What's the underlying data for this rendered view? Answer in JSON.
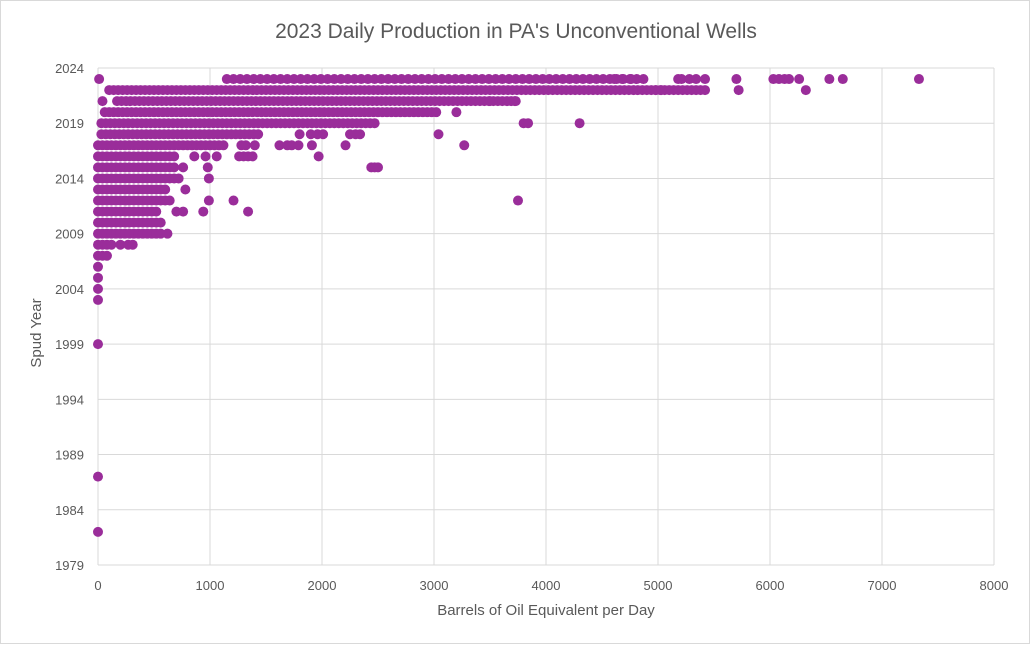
{
  "chart_data": {
    "type": "scatter",
    "title": "2023 Daily Production in PA's Unconventional Wells",
    "xlabel": "Barrels of Oil Equivalent per Day",
    "ylabel": "Spud Year",
    "xlim": [
      0,
      8000
    ],
    "ylim": [
      1979,
      2024
    ],
    "x_ticks": [
      "0",
      "1000",
      "2000",
      "3000",
      "4000",
      "5000",
      "6000",
      "7000",
      "8000"
    ],
    "y_ticks": [
      "1979",
      "1984",
      "1989",
      "1994",
      "1999",
      "2004",
      "2009",
      "2014",
      "2019",
      "2024"
    ],
    "grid": "horizontal and vertical",
    "legend": "none",
    "marker_color": "#9a2d9a",
    "series": [
      {
        "runs": [
          {
            "year": 2023,
            "from": 1150,
            "to": 4900,
            "step": 60
          },
          {
            "year": 2022,
            "from": 100,
            "to": 5450,
            "step": 40
          },
          {
            "year": 2021,
            "from": 170,
            "to": 3750,
            "step": 40
          },
          {
            "year": 2020,
            "from": 60,
            "to": 3050,
            "step": 40
          },
          {
            "year": 2019,
            "from": 30,
            "to": 2500,
            "step": 40
          },
          {
            "year": 2018,
            "from": 30,
            "to": 1450,
            "step": 40
          },
          {
            "year": 2017,
            "from": 0,
            "to": 1150,
            "step": 40
          },
          {
            "year": 2016,
            "from": 0,
            "to": 690,
            "step": 40
          },
          {
            "year": 2015,
            "from": 0,
            "to": 690,
            "step": 40
          },
          {
            "year": 2014,
            "from": 0,
            "to": 720,
            "step": 40
          },
          {
            "year": 2013,
            "from": 0,
            "to": 620,
            "step": 40
          },
          {
            "year": 2012,
            "from": 0,
            "to": 640,
            "step": 40
          },
          {
            "year": 2011,
            "from": 0,
            "to": 540,
            "step": 40
          },
          {
            "year": 2010,
            "from": 0,
            "to": 560,
            "step": 40
          },
          {
            "year": 2009,
            "from": 0,
            "to": 560,
            "step": 40
          },
          {
            "year": 2008,
            "from": 0,
            "to": 130,
            "step": 40
          },
          {
            "year": 2007,
            "from": 0,
            "to": 80,
            "step": 40
          }
        ],
        "points": [
          {
            "x": 10,
            "y": 2023
          },
          {
            "x": 5700,
            "y": 2023
          },
          {
            "x": 6030,
            "y": 2023
          },
          {
            "x": 6080,
            "y": 2023
          },
          {
            "x": 6130,
            "y": 2023
          },
          {
            "x": 6170,
            "y": 2023
          },
          {
            "x": 6260,
            "y": 2023
          },
          {
            "x": 6530,
            "y": 2023
          },
          {
            "x": 6650,
            "y": 2023
          },
          {
            "x": 7330,
            "y": 2023
          },
          {
            "x": 4610,
            "y": 2023
          },
          {
            "x": 4680,
            "y": 2023
          },
          {
            "x": 4760,
            "y": 2023
          },
          {
            "x": 5180,
            "y": 2023
          },
          {
            "x": 5210,
            "y": 2023
          },
          {
            "x": 5280,
            "y": 2023
          },
          {
            "x": 5340,
            "y": 2023
          },
          {
            "x": 5420,
            "y": 2023
          },
          {
            "x": 5720,
            "y": 2022
          },
          {
            "x": 6320,
            "y": 2022
          },
          {
            "x": 4980,
            "y": 2022
          },
          {
            "x": 5030,
            "y": 2022
          },
          {
            "x": 40,
            "y": 2021
          },
          {
            "x": 3500,
            "y": 2021
          },
          {
            "x": 3720,
            "y": 2021
          },
          {
            "x": 3200,
            "y": 2020
          },
          {
            "x": 3800,
            "y": 2019
          },
          {
            "x": 3840,
            "y": 2019
          },
          {
            "x": 4300,
            "y": 2019
          },
          {
            "x": 1800,
            "y": 2018
          },
          {
            "x": 1900,
            "y": 2018
          },
          {
            "x": 1960,
            "y": 2018
          },
          {
            "x": 2010,
            "y": 2018
          },
          {
            "x": 2250,
            "y": 2018
          },
          {
            "x": 2300,
            "y": 2018
          },
          {
            "x": 2340,
            "y": 2018
          },
          {
            "x": 3040,
            "y": 2018
          },
          {
            "x": 1280,
            "y": 2017
          },
          {
            "x": 1320,
            "y": 2017
          },
          {
            "x": 1400,
            "y": 2017
          },
          {
            "x": 1620,
            "y": 2017
          },
          {
            "x": 1690,
            "y": 2017
          },
          {
            "x": 1730,
            "y": 2017
          },
          {
            "x": 1790,
            "y": 2017
          },
          {
            "x": 1910,
            "y": 2017
          },
          {
            "x": 2210,
            "y": 2017
          },
          {
            "x": 3270,
            "y": 2017
          },
          {
            "x": 860,
            "y": 2016
          },
          {
            "x": 960,
            "y": 2016
          },
          {
            "x": 1060,
            "y": 2016
          },
          {
            "x": 1260,
            "y": 2016
          },
          {
            "x": 1300,
            "y": 2016
          },
          {
            "x": 1340,
            "y": 2016
          },
          {
            "x": 1380,
            "y": 2016
          },
          {
            "x": 1970,
            "y": 2016
          },
          {
            "x": 760,
            "y": 2015
          },
          {
            "x": 980,
            "y": 2015
          },
          {
            "x": 2440,
            "y": 2015
          },
          {
            "x": 2470,
            "y": 2015
          },
          {
            "x": 2500,
            "y": 2015
          },
          {
            "x": 990,
            "y": 2014
          },
          {
            "x": 780,
            "y": 2013
          },
          {
            "x": 990,
            "y": 2012
          },
          {
            "x": 1210,
            "y": 2012
          },
          {
            "x": 3750,
            "y": 2012
          },
          {
            "x": 700,
            "y": 2011
          },
          {
            "x": 760,
            "y": 2011
          },
          {
            "x": 940,
            "y": 2011
          },
          {
            "x": 1340,
            "y": 2011
          },
          {
            "x": 620,
            "y": 2009
          },
          {
            "x": 200,
            "y": 2008
          },
          {
            "x": 270,
            "y": 2008
          },
          {
            "x": 310,
            "y": 2008
          },
          {
            "x": 0,
            "y": 2006
          },
          {
            "x": 0,
            "y": 2005
          },
          {
            "x": 0,
            "y": 2004
          },
          {
            "x": 0,
            "y": 2003
          },
          {
            "x": 0,
            "y": 1999
          },
          {
            "x": 0,
            "y": 1987
          },
          {
            "x": 0,
            "y": 1982
          }
        ]
      }
    ]
  }
}
